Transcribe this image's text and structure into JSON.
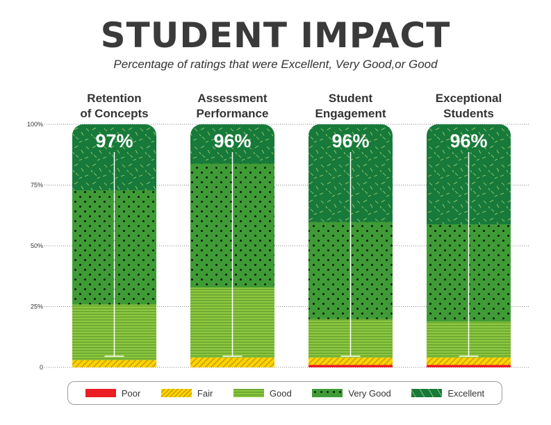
{
  "title": "STUDENT IMPACT",
  "subtitle": "Percentage of ratings that were Excellent, Very Good,or Good",
  "chart_data": {
    "type": "bar",
    "stacked": true,
    "categories": [
      [
        "Retention",
        "of Concepts"
      ],
      [
        "Assessment",
        "Performance"
      ],
      [
        "Student",
        "Engagement"
      ],
      [
        "Exceptional",
        "Students"
      ]
    ],
    "top_labels": [
      "97%",
      "96%",
      "96%",
      "96%"
    ],
    "series": [
      {
        "name": "Poor",
        "values": [
          0,
          0,
          1,
          1
        ],
        "color": "#ec1c24"
      },
      {
        "name": "Fair",
        "values": [
          3,
          4,
          3,
          3
        ],
        "color": "#ffd400"
      },
      {
        "name": "Good",
        "values": [
          23,
          29,
          16,
          15
        ],
        "color": "#8dc63f"
      },
      {
        "name": "Very Good",
        "values": [
          47,
          51,
          40,
          40
        ],
        "color": "#3f9b35"
      },
      {
        "name": "Excellent",
        "values": [
          27,
          16,
          40,
          41
        ],
        "color": "#177a3b"
      }
    ],
    "y_ticks": [
      "100%",
      "75%",
      "50%",
      "25%",
      "0"
    ],
    "ylim": [
      0,
      100
    ],
    "grid": "dotted",
    "legend_position": "bottom"
  }
}
